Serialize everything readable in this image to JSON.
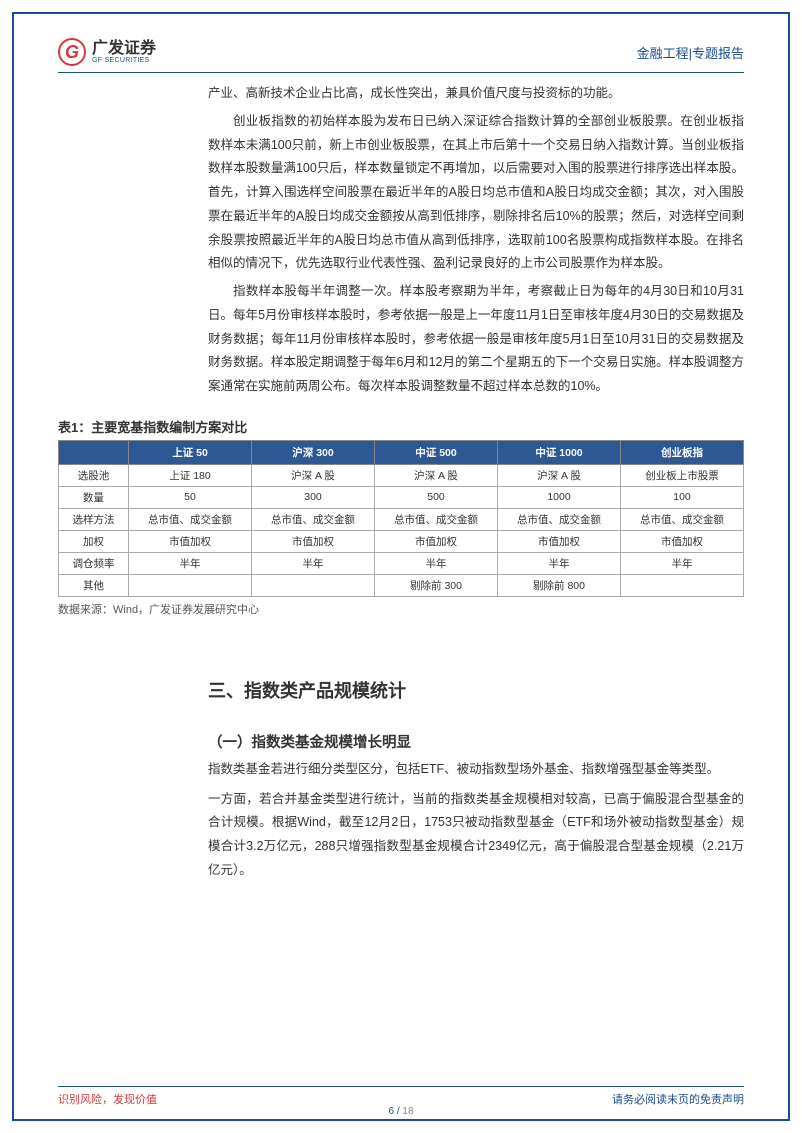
{
  "header": {
    "logo_cn": "广发证券",
    "logo_en": "GF SECURITIES",
    "logo_letter": "G",
    "right": "金融工程|专题报告"
  },
  "paragraphs": {
    "p0": "产业、高新技术企业占比高，成长性突出，兼具价值尺度与投资标的功能。",
    "p1": "创业板指数的初始样本股为发布日已纳入深证综合指数计算的全部创业板股票。在创业板指数样本未满100只前，新上市创业板股票，在其上市后第十一个交易日纳入指数计算。当创业板指数样本股数量满100只后，样本数量锁定不再增加，以后需要对入围的股票进行排序选出样本股。首先，计算入围选样空间股票在最近半年的A股日均总市值和A股日均成交金额；其次，对入围股票在最近半年的A股日均成交金额按从高到低排序，剔除排名后10%的股票；然后，对选样空间剩余股票按照最近半年的A股日均总市值从高到低排序，选取前100名股票构成指数样本股。在排名相似的情况下，优先选取行业代表性强、盈利记录良好的上市公司股票作为样本股。",
    "p2": "指数样本股每半年调整一次。样本股考察期为半年，考察截止日为每年的4月30日和10月31日。每年5月份审核样本股时，参考依据一般是上一年度11月1日至审核年度4月30日的交易数据及财务数据；每年11月份审核样本股时，参考依据一般是审核年度5月1日至10月31日的交易数据及财务数据。样本股定期调整于每年6月和12月的第二个星期五的下一个交易日实施。样本股调整方案通常在实施前两周公布。每次样本股调整数量不超过样本总数的10%。"
  },
  "table": {
    "title": "表1：主要宽基指数编制方案对比",
    "source": "数据来源：Wind，广发证券发展研究中心",
    "headers": [
      "",
      "上证 50",
      "沪深 300",
      "中证 500",
      "中证 1000",
      "创业板指"
    ],
    "rows": [
      [
        "选股池",
        "上证 180",
        "沪深 A 股",
        "沪深 A 股",
        "沪深 A 股",
        "创业板上市股票"
      ],
      [
        "数量",
        "50",
        "300",
        "500",
        "1000",
        "100"
      ],
      [
        "选样方法",
        "总市值、成交金额",
        "总市值、成交金额",
        "总市值、成交金额",
        "总市值、成交金额",
        "总市值、成交金额"
      ],
      [
        "加权",
        "市值加权",
        "市值加权",
        "市值加权",
        "市值加权",
        "市值加权"
      ],
      [
        "调仓频率",
        "半年",
        "半年",
        "半年",
        "半年",
        "半年"
      ],
      [
        "其他",
        "",
        "",
        "剔除前 300",
        "剔除前 800",
        ""
      ]
    ]
  },
  "section": {
    "h2": "三、指数类产品规模统计",
    "h3": "（一）指数类基金规模增长明显",
    "p3": "指数类基金若进行细分类型区分，包括ETF、被动指数型场外基金、指数增强型基金等类型。",
    "p4": "一方面，若合并基金类型进行统计，当前的指数类基金规模相对较高，已高于偏股混合型基金的合计规模。根据Wind，截至12月2日，1753只被动指数型基金（ETF和场外被动指数型基金）规模合计3.2万亿元，288只增强指数型基金规模合计2349亿元，高于偏股混合型基金规模（2.21万亿元）。"
  },
  "footer": {
    "left": "识别风险，发现价值",
    "right": "请务必阅读末页的免责声明",
    "page_current": "6",
    "page_sep": " / ",
    "page_total": "18"
  }
}
